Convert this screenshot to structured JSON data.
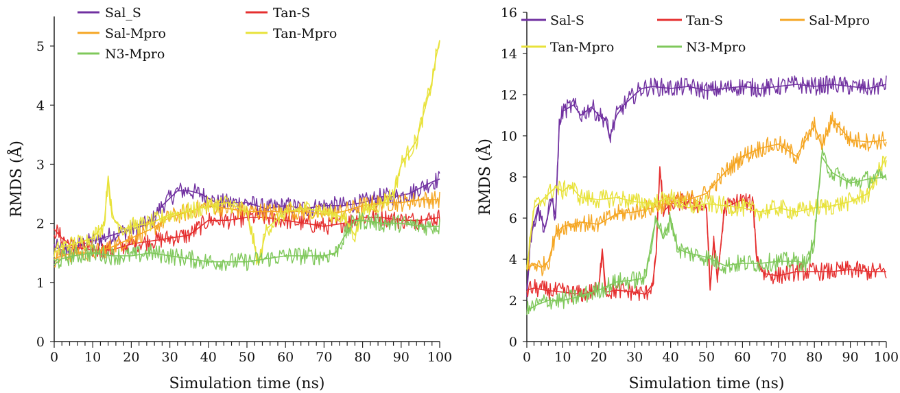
{
  "chart_data": [
    {
      "type": "line",
      "xlabel": "Simulation time (ns)",
      "ylabel": "RMDS (Å)",
      "xlim": [
        0,
        100
      ],
      "ylim": [
        0,
        5.5
      ],
      "xticks": [
        0,
        10,
        20,
        30,
        40,
        50,
        60,
        70,
        80,
        90,
        100
      ],
      "yticks": [
        0,
        1,
        2,
        3,
        4,
        5
      ],
      "grid": false,
      "legend_position": "top",
      "series": [
        {
          "name": "Sal_S",
          "color": "#7030a0",
          "x": [
            0,
            2,
            5,
            10,
            15,
            20,
            25,
            28,
            32,
            35,
            38,
            42,
            45,
            50,
            55,
            60,
            65,
            70,
            75,
            80,
            85,
            88,
            92,
            95,
            98,
            100
          ],
          "y": [
            1.6,
            1.55,
            1.6,
            1.7,
            1.8,
            1.9,
            2.0,
            2.3,
            2.55,
            2.55,
            2.5,
            2.35,
            2.35,
            2.35,
            2.25,
            2.3,
            2.25,
            2.3,
            2.3,
            2.35,
            2.45,
            2.45,
            2.5,
            2.6,
            2.7,
            2.75
          ]
        },
        {
          "name": "Tan-S",
          "color": "#e52f2f",
          "x": [
            0,
            2,
            5,
            10,
            15,
            20,
            25,
            30,
            35,
            40,
            45,
            50,
            55,
            60,
            65,
            70,
            75,
            80,
            85,
            90,
            95,
            100
          ],
          "y": [
            1.9,
            1.75,
            1.6,
            1.55,
            1.55,
            1.65,
            1.7,
            1.75,
            1.8,
            2.05,
            2.05,
            2.1,
            2.1,
            2.05,
            2.0,
            1.95,
            2.0,
            2.1,
            2.1,
            2.05,
            2.05,
            2.1
          ]
        },
        {
          "name": "Sal-Mpro",
          "color": "#f5a623",
          "x": [
            0,
            2,
            5,
            10,
            15,
            20,
            25,
            30,
            35,
            40,
            45,
            50,
            55,
            60,
            65,
            70,
            75,
            80,
            85,
            90,
            95,
            100
          ],
          "y": [
            1.4,
            1.45,
            1.5,
            1.5,
            1.6,
            1.75,
            1.9,
            2.1,
            2.2,
            2.3,
            2.25,
            2.2,
            2.2,
            2.2,
            2.2,
            2.15,
            2.2,
            2.3,
            2.35,
            2.35,
            2.4,
            2.4
          ]
        },
        {
          "name": "Tan-Mpro",
          "color": "#e8e23a",
          "x": [
            0,
            2,
            5,
            10,
            13,
            14,
            15,
            18,
            20,
            25,
            30,
            35,
            40,
            45,
            50,
            53,
            55,
            60,
            65,
            70,
            75,
            78,
            80,
            85,
            88,
            90,
            92,
            94,
            96,
            98,
            99,
            100
          ],
          "y": [
            1.5,
            1.6,
            1.65,
            1.75,
            2.0,
            2.8,
            2.1,
            1.9,
            1.95,
            2.0,
            2.15,
            2.2,
            2.3,
            2.35,
            2.2,
            1.3,
            1.9,
            2.2,
            2.25,
            2.2,
            2.1,
            1.8,
            2.2,
            2.35,
            2.5,
            3.0,
            3.2,
            3.4,
            3.9,
            4.4,
            4.8,
            5.1
          ]
        },
        {
          "name": "N3-Mpro",
          "color": "#7fc85b",
          "x": [
            0,
            2,
            5,
            10,
            15,
            20,
            25,
            30,
            35,
            40,
            45,
            50,
            55,
            60,
            65,
            70,
            73,
            75,
            78,
            80,
            85,
            90,
            95,
            100
          ],
          "y": [
            1.3,
            1.4,
            1.45,
            1.5,
            1.45,
            1.45,
            1.5,
            1.45,
            1.4,
            1.35,
            1.35,
            1.35,
            1.4,
            1.45,
            1.45,
            1.45,
            1.5,
            1.75,
            2.05,
            2.05,
            2.0,
            2.0,
            1.95,
            1.95
          ]
        }
      ]
    },
    {
      "type": "line",
      "xlabel": "Simulation time (ns)",
      "ylabel": "RMDS (Å)",
      "xlim": [
        0,
        100
      ],
      "ylim": [
        0,
        16
      ],
      "xticks": [
        0,
        10,
        20,
        30,
        40,
        50,
        60,
        70,
        80,
        90,
        100
      ],
      "yticks": [
        0,
        2,
        4,
        6,
        8,
        10,
        12,
        14,
        16
      ],
      "grid": false,
      "legend_position": "top",
      "series": [
        {
          "name": "Sal-S",
          "color": "#7030a0",
          "x": [
            0,
            1,
            3,
            5,
            7,
            8,
            9,
            10,
            13,
            15,
            18,
            20,
            22,
            23,
            25,
            27,
            30,
            32,
            35,
            40,
            45,
            50,
            55,
            60,
            65,
            70,
            75,
            80,
            85,
            90,
            95,
            100
          ],
          "y": [
            2.5,
            5.0,
            6.5,
            5.5,
            7.0,
            6.0,
            10.5,
            11.2,
            11.5,
            11.0,
            11.4,
            11.0,
            10.8,
            9.9,
            11.0,
            11.5,
            12.0,
            12.3,
            12.4,
            12.3,
            12.4,
            12.2,
            12.3,
            12.4,
            12.3,
            12.4,
            12.5,
            12.4,
            12.5,
            12.4,
            12.3,
            12.5
          ]
        },
        {
          "name": "Tan-S",
          "color": "#e52f2f",
          "x": [
            0,
            2,
            5,
            10,
            15,
            20,
            21,
            22,
            25,
            30,
            33,
            35,
            36,
            37,
            38,
            40,
            45,
            50,
            51,
            52,
            53,
            55,
            60,
            63,
            64,
            66,
            70,
            75,
            80,
            85,
            90,
            95,
            100
          ],
          "y": [
            2.5,
            2.6,
            2.5,
            2.4,
            2.3,
            2.5,
            4.5,
            2.4,
            2.5,
            2.4,
            2.3,
            2.8,
            4.3,
            8.5,
            6.3,
            6.7,
            6.8,
            6.5,
            2.5,
            5.0,
            3.0,
            6.5,
            6.9,
            6.6,
            4.0,
            3.3,
            3.2,
            3.4,
            3.4,
            3.4,
            3.5,
            3.4,
            3.4
          ]
        },
        {
          "name": "Sal-Mpro",
          "color": "#f5a623",
          "x": [
            0,
            2,
            4,
            6,
            8,
            10,
            15,
            20,
            25,
            30,
            35,
            40,
            45,
            50,
            55,
            60,
            65,
            70,
            75,
            80,
            82,
            85,
            90,
            95,
            100
          ],
          "y": [
            3.5,
            3.8,
            3.6,
            3.9,
            5.2,
            5.6,
            5.8,
            5.7,
            6.2,
            6.3,
            6.5,
            6.8,
            6.9,
            7.2,
            8.2,
            9.0,
            9.4,
            9.6,
            9.0,
            10.5,
            9.5,
            10.8,
            9.8,
            9.7,
            9.8
          ]
        },
        {
          "name": "Tan-Mpro",
          "color": "#e8e23a",
          "x": [
            0,
            2,
            5,
            8,
            10,
            12,
            15,
            20,
            25,
            30,
            35,
            40,
            45,
            50,
            55,
            60,
            65,
            70,
            75,
            80,
            85,
            90,
            95,
            100
          ],
          "y": [
            3.5,
            6.5,
            7.0,
            7.5,
            7.3,
            7.6,
            7.0,
            6.9,
            7.0,
            6.8,
            6.7,
            7.0,
            6.5,
            6.7,
            6.6,
            6.5,
            6.3,
            6.5,
            6.3,
            6.5,
            6.6,
            6.8,
            7.2,
            9.0
          ]
        },
        {
          "name": "N3-Mpro",
          "color": "#7fc85b",
          "x": [
            0,
            3,
            6,
            10,
            15,
            20,
            25,
            30,
            33,
            35,
            36,
            38,
            40,
            42,
            45,
            50,
            55,
            60,
            65,
            70,
            75,
            78,
            80,
            81,
            82,
            85,
            90,
            95,
            100
          ],
          "y": [
            1.5,
            1.8,
            2.0,
            2.0,
            2.2,
            2.5,
            2.9,
            3.0,
            3.1,
            5.2,
            6.0,
            5.0,
            6.0,
            4.5,
            4.3,
            4.1,
            3.7,
            3.8,
            3.8,
            3.9,
            3.9,
            3.8,
            5.0,
            7.0,
            9.0,
            8.2,
            7.7,
            7.9,
            8.0
          ]
        }
      ]
    }
  ]
}
